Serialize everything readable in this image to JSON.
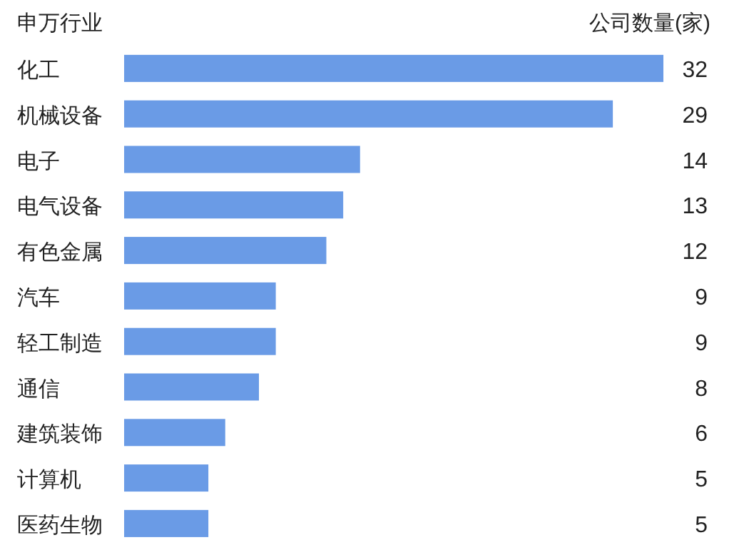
{
  "chart_data": {
    "type": "bar",
    "orientation": "horizontal",
    "ylabel": "申万行业",
    "xlabel": "公司数量(家)",
    "categories": [
      "化工",
      "机械设备",
      "电子",
      "电气设备",
      "有色金属",
      "汽车",
      "轻工制造",
      "通信",
      "建筑装饰",
      "计算机",
      "医药生物"
    ],
    "values": [
      32,
      29,
      14,
      13,
      12,
      9,
      9,
      8,
      6,
      5,
      5
    ],
    "color": "#6a9be6",
    "data_labels": true
  }
}
